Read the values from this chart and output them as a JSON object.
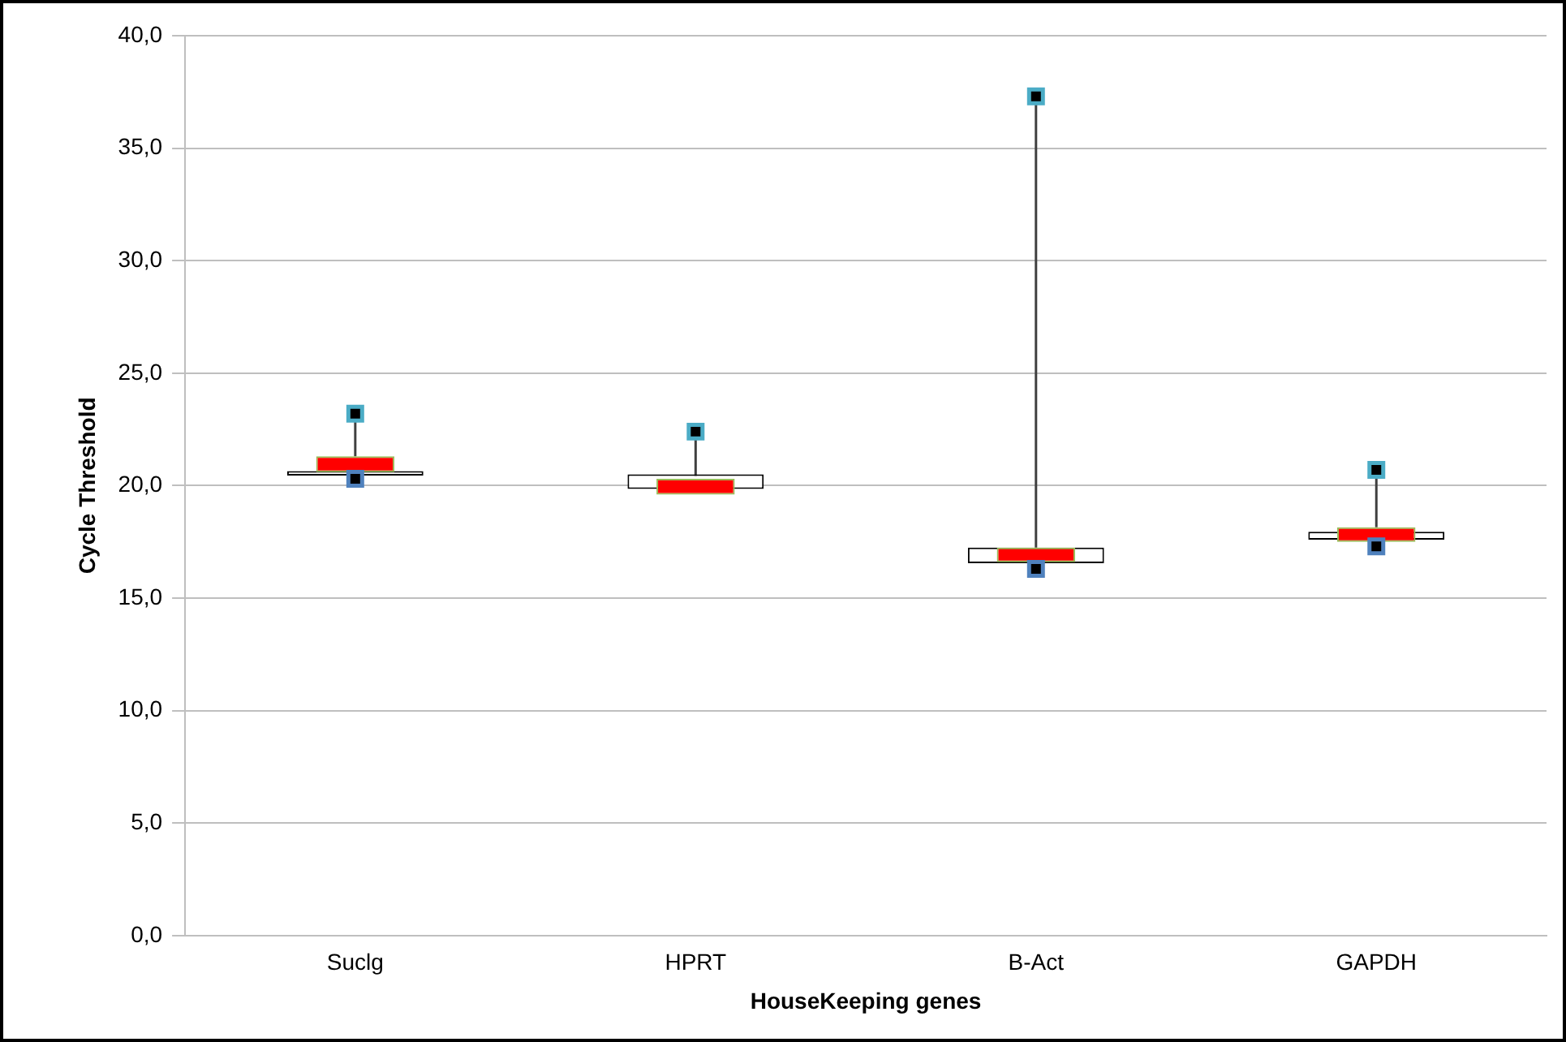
{
  "chart_data": {
    "type": "bar",
    "xlabel": "HouseKeeping genes",
    "ylabel": "Cycle Threshold",
    "categories": [
      "Suclg",
      "HPRT",
      "B-Act",
      "GAPDH"
    ],
    "series": [
      {
        "color": "#ffffff",
        "base": [
          20.45,
          19.85,
          16.55,
          17.6
        ],
        "values": [
          0.2,
          0.65,
          0.7,
          0.35
        ]
      },
      {
        "color": "#ff0000",
        "base": [
          20.6,
          19.6,
          16.6,
          17.5
        ],
        "values": [
          0.7,
          0.7,
          0.65,
          0.65
        ],
        "errors": [
          [
            21.3,
            23.2
          ],
          [
            20.3,
            22.4
          ],
          [
            17.25,
            37.3
          ],
          [
            18.15,
            20.7
          ]
        ]
      },
      {
        "type": "scatter",
        "color": "#4bacc6",
        "x": [
          "Suclg",
          "HPRT",
          "B-Act",
          "GAPDH"
        ],
        "values": [
          23.2,
          22.4,
          37.3,
          20.7
        ]
      },
      {
        "type": "scatter",
        "color": "#4f81bd",
        "x": [
          "Suclg",
          "HPRT",
          "B-Act",
          "GAPDH"
        ],
        "values": [
          20.3,
          null,
          16.3,
          17.3
        ]
      }
    ],
    "ylim": [
      0,
      40
    ],
    "yticks": [
      {
        "value": 0,
        "label": "0,0"
      },
      {
        "value": 5,
        "label": "5,0"
      },
      {
        "value": 10,
        "label": "10,0"
      },
      {
        "value": 15,
        "label": "15,0"
      },
      {
        "value": 20,
        "label": "20,0"
      },
      {
        "value": 25,
        "label": "25,0"
      },
      {
        "value": 30,
        "label": "30,0"
      },
      {
        "value": 35,
        "label": "35,0"
      },
      {
        "value": 40,
        "label": "40,0"
      }
    ],
    "grid": "y",
    "legend": false,
    "marker": "square"
  }
}
